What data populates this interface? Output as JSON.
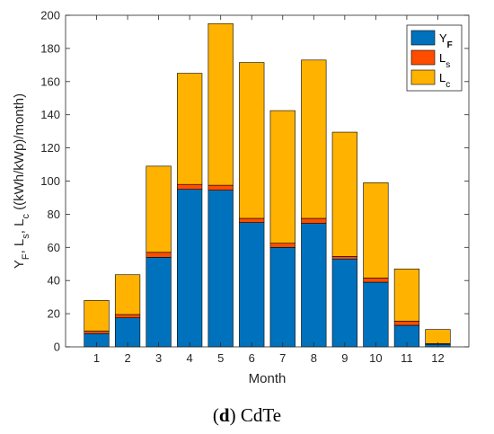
{
  "caption": {
    "letter": "d",
    "text": "CdTe"
  },
  "chart_data": {
    "type": "bar",
    "stacked": true,
    "xlabel": "Month",
    "ylabel_parts": [
      {
        "t": "Y"
      },
      {
        "t": "F",
        "sub": true
      },
      {
        "t": ", L"
      },
      {
        "t": "s",
        "sub": true
      },
      {
        "t": ", L"
      },
      {
        "t": "c",
        "sub": true
      },
      {
        "t": " ((kWh/kWp)/month)"
      }
    ],
    "ylim": [
      0,
      200
    ],
    "yticks": [
      0,
      20,
      40,
      60,
      80,
      100,
      120,
      140,
      160,
      180,
      200
    ],
    "categories": [
      "1",
      "2",
      "3",
      "4",
      "5",
      "6",
      "7",
      "8",
      "9",
      "10",
      "11",
      "12"
    ],
    "grid": false,
    "legend_position": "top-right",
    "series": [
      {
        "name": "Y",
        "sub": "F",
        "sub_bold": true,
        "color": "#0072BD",
        "values": [
          8,
          17.5,
          54,
          95,
          94.5,
          75,
          60,
          74.5,
          53,
          39,
          13,
          1.5
        ]
      },
      {
        "name": "L",
        "sub": "s",
        "sub_bold": false,
        "color": "#FF4D00",
        "values": [
          1.5,
          2,
          3,
          3,
          3,
          2.5,
          2.5,
          3,
          1.5,
          2.5,
          2.5,
          0.5
        ]
      },
      {
        "name": "L",
        "sub": "c",
        "sub_bold": false,
        "color": "#FFB300",
        "values": [
          18.5,
          24,
          52,
          67,
          97.5,
          94,
          80,
          95.5,
          75,
          57.5,
          31.5,
          8.5
        ]
      }
    ]
  }
}
